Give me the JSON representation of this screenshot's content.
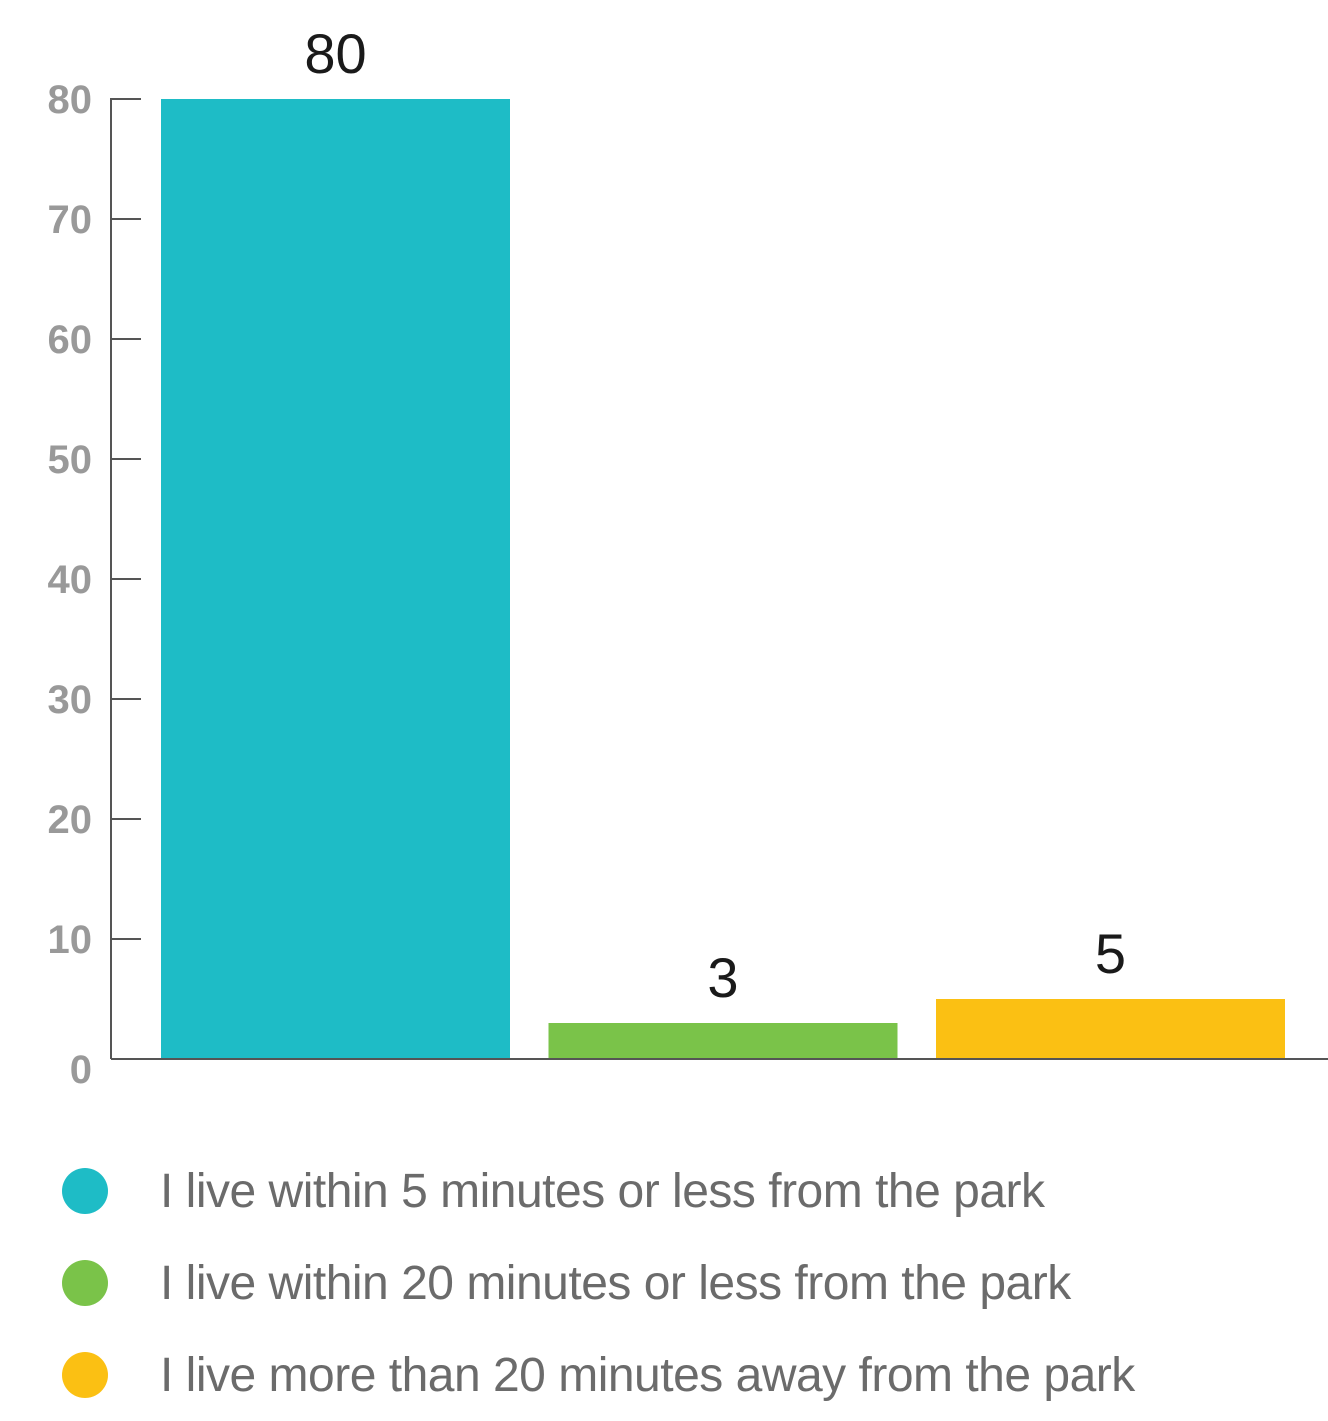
{
  "chart_data": {
    "type": "bar",
    "categories": [
      "I live within 5 minutes or less from the park",
      "I live within 20 minutes or less from the park",
      "I live more than 20 minutes away from the park"
    ],
    "values": [
      80,
      3,
      5
    ],
    "colors": [
      "#1ebcc6",
      "#7ac349",
      "#fbc013"
    ],
    "data_labels": [
      "80",
      "3",
      "5"
    ],
    "yticks": [
      "0",
      "10",
      "20",
      "30",
      "40",
      "50",
      "60",
      "70",
      "80"
    ],
    "ylim": [
      0,
      80
    ],
    "title": "",
    "xlabel": "",
    "ylabel": "",
    "grid": false,
    "legend_position": "bottom"
  }
}
